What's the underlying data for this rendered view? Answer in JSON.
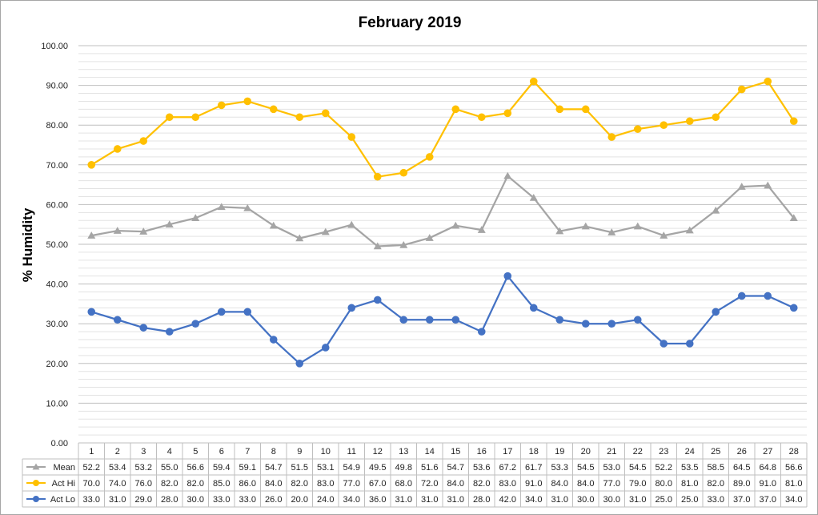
{
  "chart_data": {
    "type": "line",
    "title": "February 2019",
    "xlabel": "",
    "ylabel": "% Humidity",
    "ylim": [
      0,
      100
    ],
    "y_tick_labels": [
      "0.00",
      "10.00",
      "20.00",
      "30.00",
      "40.00",
      "50.00",
      "60.00",
      "70.00",
      "80.00",
      "90.00",
      "100.00"
    ],
    "grid": "horizontal",
    "legend": "data-table",
    "categories": [
      "1",
      "2",
      "3",
      "4",
      "5",
      "6",
      "7",
      "8",
      "9",
      "10",
      "11",
      "12",
      "13",
      "14",
      "15",
      "16",
      "17",
      "18",
      "19",
      "20",
      "21",
      "22",
      "23",
      "24",
      "25",
      "26",
      "27",
      "28"
    ],
    "series": [
      {
        "name": "Mean",
        "color": "#a5a5a5",
        "marker": "triangle",
        "values": [
          52.2,
          53.4,
          53.2,
          55.0,
          56.6,
          59.4,
          59.1,
          54.7,
          51.5,
          53.1,
          54.9,
          49.5,
          49.8,
          51.6,
          54.7,
          53.6,
          67.2,
          61.7,
          53.3,
          54.5,
          53.0,
          54.5,
          52.2,
          53.5,
          58.5,
          64.5,
          64.8,
          56.6
        ],
        "labels": [
          "52.2",
          "53.4",
          "53.2",
          "55.0",
          "56.6",
          "59.4",
          "59.1",
          "54.7",
          "51.5",
          "53.1",
          "54.9",
          "49.5",
          "49.8",
          "51.6",
          "54.7",
          "53.6",
          "67.2",
          "61.7",
          "53.3",
          "54.5",
          "53.0",
          "54.5",
          "52.2",
          "53.5",
          "58.5",
          "64.5",
          "64.8",
          "56.6"
        ]
      },
      {
        "name": "Act Hi",
        "color": "#ffc000",
        "marker": "circle",
        "values": [
          70.0,
          74.0,
          76.0,
          82.0,
          82.0,
          85.0,
          86.0,
          84.0,
          82.0,
          83.0,
          77.0,
          67.0,
          68.0,
          72.0,
          84.0,
          82.0,
          83.0,
          91.0,
          84.0,
          84.0,
          77.0,
          79.0,
          80.0,
          81.0,
          82.0,
          89.0,
          91.0,
          81.0
        ],
        "labels": [
          "70.0",
          "74.0",
          "76.0",
          "82.0",
          "82.0",
          "85.0",
          "86.0",
          "84.0",
          "82.0",
          "83.0",
          "77.0",
          "67.0",
          "68.0",
          "72.0",
          "84.0",
          "82.0",
          "83.0",
          "91.0",
          "84.0",
          "84.0",
          "77.0",
          "79.0",
          "80.0",
          "81.0",
          "82.0",
          "89.0",
          "91.0",
          "81.0"
        ]
      },
      {
        "name": "Act Lo",
        "color": "#4472c4",
        "marker": "circle",
        "values": [
          33.0,
          31.0,
          29.0,
          28.0,
          30.0,
          33.0,
          33.0,
          26.0,
          20.0,
          24.0,
          34.0,
          36.0,
          31.0,
          31.0,
          31.0,
          28.0,
          42.0,
          34.0,
          31.0,
          30.0,
          30.0,
          31.0,
          25.0,
          25.0,
          33.0,
          37.0,
          37.0,
          34.0
        ],
        "labels": [
          "33.0",
          "31.0",
          "29.0",
          "28.0",
          "30.0",
          "33.0",
          "33.0",
          "26.0",
          "20.0",
          "24.0",
          "34.0",
          "36.0",
          "31.0",
          "31.0",
          "31.0",
          "28.0",
          "42.0",
          "34.0",
          "31.0",
          "30.0",
          "30.0",
          "31.0",
          "25.0",
          "25.0",
          "33.0",
          "37.0",
          "37.0",
          "34.0"
        ]
      }
    ]
  }
}
